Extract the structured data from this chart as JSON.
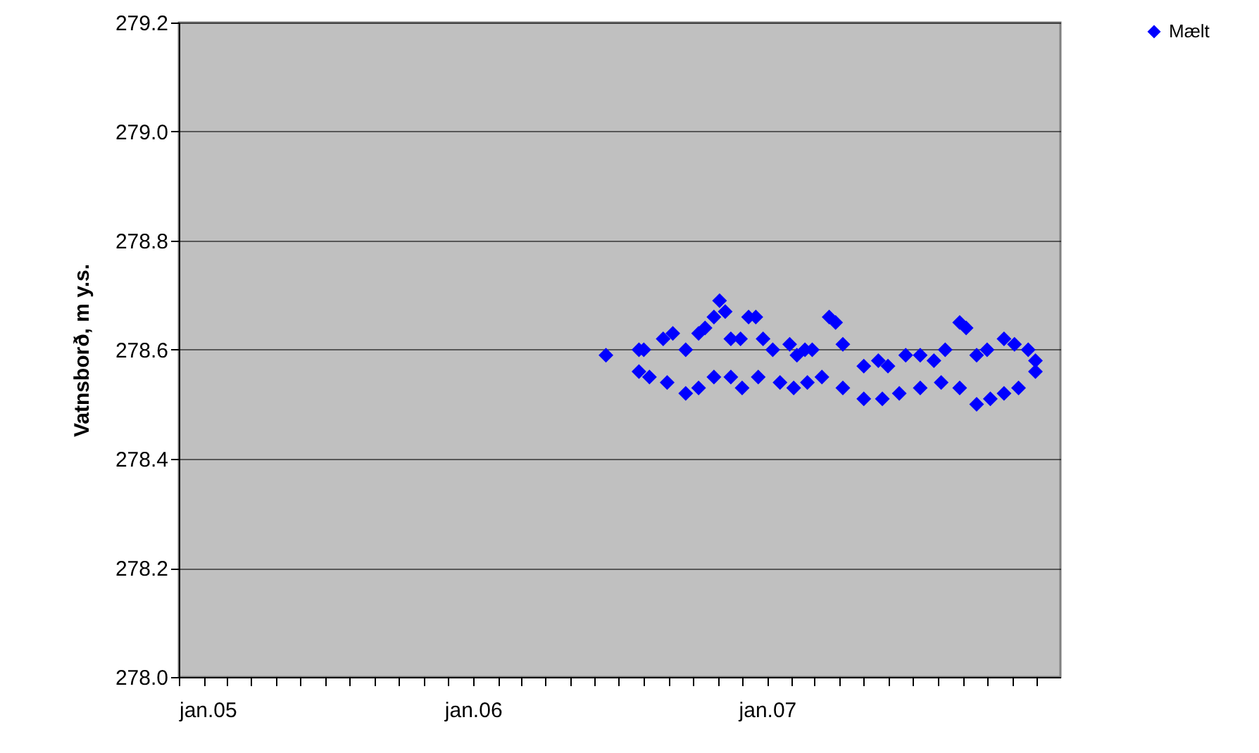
{
  "chart_data": {
    "type": "scatter",
    "ylabel": "Vatnsborð, m y.s.",
    "series": [
      {
        "name": "Mælt",
        "color": "#0000ff",
        "x": [
          "2006-06-15",
          "2006-07-26",
          "2006-08-01",
          "2006-08-25",
          "2006-09-06",
          "2006-09-22",
          "2006-10-08",
          "2006-10-16",
          "2006-10-27",
          "2006-11-03",
          "2006-11-10",
          "2006-11-17",
          "2006-11-29",
          "2006-12-09",
          "2006-12-18",
          "2006-12-27",
          "2007-01-08",
          "2007-01-29",
          "2007-02-07",
          "2007-02-17",
          "2007-02-26",
          "2007-03-19",
          "2007-03-27",
          "2007-04-05",
          "2007-05-01",
          "2007-05-19",
          "2007-05-31",
          "2007-06-22",
          "2007-07-10",
          "2007-07-27",
          "2007-08-10",
          "2007-08-28",
          "2007-09-05",
          "2007-09-18",
          "2007-10-01",
          "2007-10-22",
          "2007-11-04",
          "2007-11-21",
          "2007-11-30",
          "2006-07-26",
          "2006-08-08",
          "2006-08-30",
          "2006-09-22",
          "2006-10-08",
          "2006-10-27",
          "2006-11-17",
          "2006-12-01",
          "2006-12-21",
          "2007-01-17",
          "2007-02-03",
          "2007-02-20",
          "2007-03-10",
          "2007-04-05",
          "2007-05-01",
          "2007-05-24",
          "2007-06-14",
          "2007-07-10",
          "2007-08-05",
          "2007-08-28",
          "2007-09-18",
          "2007-10-05",
          "2007-10-22",
          "2007-11-09",
          "2007-11-30"
        ],
        "values": [
          278.59,
          278.6,
          278.6,
          278.62,
          278.63,
          278.6,
          278.63,
          278.64,
          278.66,
          278.69,
          278.67,
          278.62,
          278.62,
          278.66,
          278.66,
          278.62,
          278.6,
          278.61,
          278.59,
          278.6,
          278.6,
          278.66,
          278.65,
          278.61,
          278.57,
          278.58,
          278.57,
          278.59,
          278.59,
          278.58,
          278.6,
          278.65,
          278.64,
          278.59,
          278.6,
          278.62,
          278.61,
          278.6,
          278.58,
          278.56,
          278.55,
          278.54,
          278.52,
          278.53,
          278.55,
          278.55,
          278.53,
          278.55,
          278.54,
          278.53,
          278.54,
          278.55,
          278.53,
          278.51,
          278.51,
          278.52,
          278.53,
          278.54,
          278.53,
          278.5,
          278.51,
          278.52,
          278.53,
          278.56
        ]
      }
    ],
    "xlim": [
      "2005-01-01",
      "2007-12-31"
    ],
    "xticks": [
      {
        "value": "2005-01-01",
        "label": "jan.05"
      },
      {
        "value": "2005-02-01",
        "label": null
      },
      {
        "value": "2005-03-01",
        "label": null
      },
      {
        "value": "2005-04-01",
        "label": null
      },
      {
        "value": "2005-05-01",
        "label": null
      },
      {
        "value": "2005-06-01",
        "label": null
      },
      {
        "value": "2005-07-01",
        "label": null
      },
      {
        "value": "2005-08-01",
        "label": null
      },
      {
        "value": "2005-09-01",
        "label": null
      },
      {
        "value": "2005-10-01",
        "label": null
      },
      {
        "value": "2005-11-01",
        "label": null
      },
      {
        "value": "2005-12-01",
        "label": null
      },
      {
        "value": "2006-01-01",
        "label": "jan.06"
      },
      {
        "value": "2006-02-01",
        "label": null
      },
      {
        "value": "2006-03-01",
        "label": null
      },
      {
        "value": "2006-04-01",
        "label": null
      },
      {
        "value": "2006-05-01",
        "label": null
      },
      {
        "value": "2006-06-01",
        "label": null
      },
      {
        "value": "2006-07-01",
        "label": null
      },
      {
        "value": "2006-08-01",
        "label": null
      },
      {
        "value": "2006-09-01",
        "label": null
      },
      {
        "value": "2006-10-01",
        "label": null
      },
      {
        "value": "2006-11-01",
        "label": null
      },
      {
        "value": "2006-12-01",
        "label": null
      },
      {
        "value": "2007-01-01",
        "label": "jan.07"
      },
      {
        "value": "2007-02-01",
        "label": null
      },
      {
        "value": "2007-03-01",
        "label": null
      },
      {
        "value": "2007-04-01",
        "label": null
      },
      {
        "value": "2007-05-01",
        "label": null
      },
      {
        "value": "2007-06-01",
        "label": null
      },
      {
        "value": "2007-07-01",
        "label": null
      },
      {
        "value": "2007-08-01",
        "label": null
      },
      {
        "value": "2007-09-01",
        "label": null
      },
      {
        "value": "2007-10-01",
        "label": null
      },
      {
        "value": "2007-11-01",
        "label": null
      },
      {
        "value": "2007-12-01",
        "label": null
      }
    ],
    "ylim": [
      278.0,
      279.2
    ],
    "yticks": [
      {
        "value": 278.0,
        "label": "278.0"
      },
      {
        "value": 278.2,
        "label": "278.2"
      },
      {
        "value": 278.4,
        "label": "278.4"
      },
      {
        "value": 278.6,
        "label": "278.6"
      },
      {
        "value": 278.8,
        "label": "278.8"
      },
      {
        "value": 279.0,
        "label": "279.0"
      },
      {
        "value": 279.2,
        "label": "279.2"
      }
    ],
    "grid": "y",
    "legend": "right",
    "marker": "diamond"
  }
}
